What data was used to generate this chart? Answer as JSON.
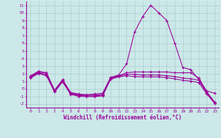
{
  "x": [
    0,
    1,
    2,
    3,
    4,
    5,
    6,
    7,
    8,
    9,
    10,
    11,
    12,
    13,
    14,
    15,
    16,
    17,
    18,
    19,
    20,
    21,
    22,
    23
  ],
  "line1": [
    1.7,
    2.3,
    2.1,
    -0.2,
    1.2,
    -0.5,
    -0.7,
    -0.8,
    -0.7,
    -0.6,
    1.5,
    1.8,
    3.3,
    7.5,
    9.5,
    11.0,
    10.0,
    9.0,
    6.0,
    2.8,
    2.5,
    1.2,
    -0.3,
    -0.6
  ],
  "line2": [
    1.6,
    2.2,
    2.0,
    -0.3,
    1.1,
    -0.6,
    -0.8,
    -0.85,
    -0.85,
    -0.75,
    1.4,
    1.7,
    2.1,
    2.2,
    2.2,
    2.2,
    2.2,
    2.2,
    2.1,
    2.1,
    2.1,
    1.4,
    -0.4,
    -1.8
  ],
  "line3": [
    1.5,
    2.1,
    1.8,
    -0.35,
    1.0,
    -0.65,
    -0.9,
    -0.95,
    -0.95,
    -0.85,
    1.35,
    1.65,
    1.9,
    1.9,
    1.8,
    1.8,
    1.8,
    1.7,
    1.6,
    1.4,
    1.3,
    1.1,
    -0.55,
    -1.85
  ],
  "line4": [
    1.4,
    2.0,
    1.7,
    -0.45,
    0.9,
    -0.75,
    -1.0,
    -1.05,
    -1.05,
    -0.95,
    1.25,
    1.55,
    1.7,
    1.6,
    1.55,
    1.55,
    1.55,
    1.45,
    1.3,
    1.1,
    1.0,
    0.8,
    -0.7,
    -1.95
  ],
  "bg_color": "#cce8e8",
  "grid_color": "#aacccc",
  "line_color": "#990099",
  "xlabel": "Windchill (Refroidissement éolien,°C)",
  "ylim": [
    -2.5,
    11.5
  ],
  "xlim": [
    -0.5,
    23.5
  ],
  "yticks": [
    -2,
    -1,
    0,
    1,
    2,
    3,
    4,
    5,
    6,
    7,
    8,
    9,
    10,
    11
  ],
  "xticks": [
    0,
    1,
    2,
    3,
    4,
    5,
    6,
    7,
    8,
    9,
    10,
    11,
    12,
    13,
    14,
    15,
    16,
    17,
    18,
    19,
    20,
    21,
    22,
    23
  ]
}
